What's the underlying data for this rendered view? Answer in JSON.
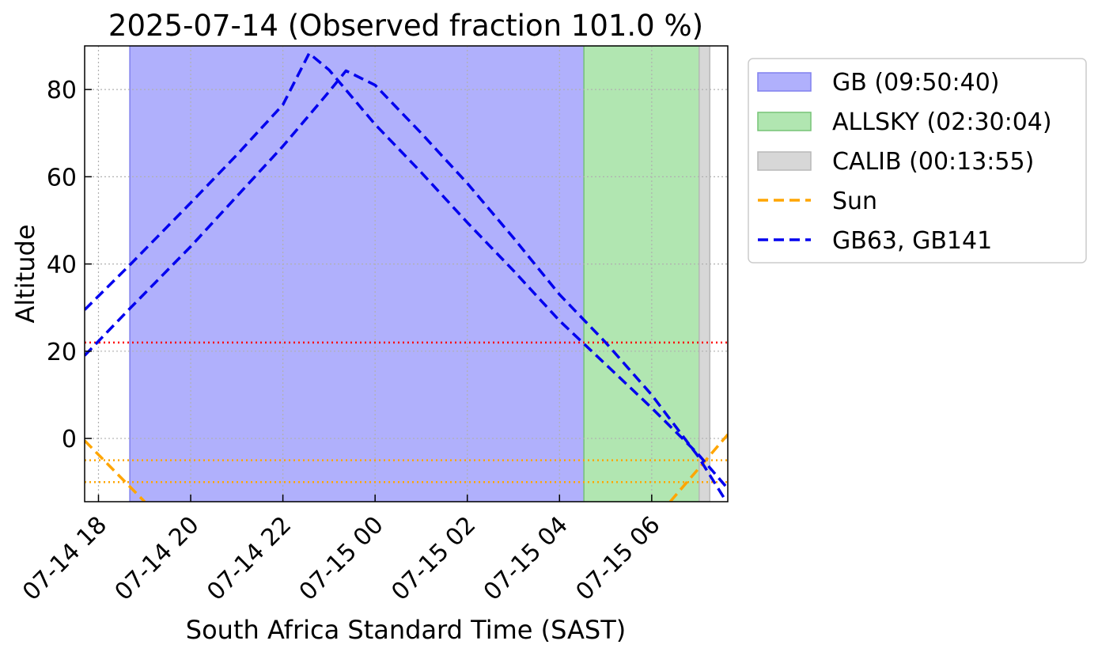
{
  "chart_data": {
    "type": "line",
    "title": "2025-07-14 (Observed fraction 101.0 %)",
    "xlabel": "South Africa Standard Time (SAST)",
    "ylabel": "Altitude",
    "x_unit": "hours since 2025-07-14 00:00 SAST",
    "xlim": [
      17.7,
      31.65
    ],
    "ylim": [
      -14.5,
      90
    ],
    "x_ticks": [
      {
        "value": 18,
        "label": "07-14 18"
      },
      {
        "value": 20,
        "label": "07-14 20"
      },
      {
        "value": 22,
        "label": "07-14 22"
      },
      {
        "value": 24,
        "label": "07-15 00"
      },
      {
        "value": 26,
        "label": "07-15 02"
      },
      {
        "value": 28,
        "label": "07-15 04"
      },
      {
        "value": 30,
        "label": "07-15 06"
      }
    ],
    "y_ticks": [
      {
        "value": 0,
        "label": "0"
      },
      {
        "value": 20,
        "label": "20"
      },
      {
        "value": 40,
        "label": "40"
      },
      {
        "value": 60,
        "label": "60"
      },
      {
        "value": 80,
        "label": "80"
      }
    ],
    "grid": true,
    "legend_position": "outside-right",
    "spans": [
      {
        "name": "GB (09:50:40)",
        "x_start": 18.68,
        "x_end": 28.53,
        "fill": "#b0b0fc",
        "edge": "#8080ee"
      },
      {
        "name": "ALLSKY (02:30:04)",
        "x_start": 28.53,
        "x_end": 31.03,
        "fill": "#b1e6b1",
        "edge": "#77c477"
      },
      {
        "name": "CALIB (00:13:55)",
        "x_start": 31.03,
        "x_end": 31.26,
        "fill": "#d7d7d7",
        "edge": "#b9b9b9"
      }
    ],
    "series": [
      {
        "name": "Sun",
        "color": "#ffa500",
        "dash": true,
        "segments": [
          [
            [
              17.7,
              -0.5
            ],
            [
              19.0,
              -14.5
            ]
          ],
          [
            [
              30.4,
              -14.5
            ],
            [
              31.65,
              0.9
            ]
          ]
        ]
      },
      {
        "name": "GB63, GB141",
        "color": "#0000ee",
        "dash": true,
        "segments": [
          [
            [
              17.7,
              29.5
            ],
            [
              18.7,
              40.0
            ],
            [
              20.0,
              54.0
            ],
            [
              21.0,
              65.0
            ],
            [
              22.0,
              76.5
            ],
            [
              22.57,
              88.3
            ],
            [
              23.0,
              84.5
            ],
            [
              24.0,
              72.0
            ],
            [
              25.0,
              61.0
            ],
            [
              26.0,
              49.5
            ],
            [
              27.0,
              38.5
            ],
            [
              28.0,
              27.0
            ],
            [
              28.5,
              22.0
            ],
            [
              29.0,
              17.0
            ],
            [
              30.0,
              7.0
            ],
            [
              31.0,
              -3.5
            ],
            [
              31.65,
              -11.5
            ]
          ],
          [
            [
              17.7,
              19.0
            ],
            [
              18.7,
              30.0
            ],
            [
              20.0,
              44.0
            ],
            [
              21.0,
              55.5
            ],
            [
              22.0,
              67.0
            ],
            [
              23.0,
              79.5
            ],
            [
              23.37,
              84.3
            ],
            [
              24.0,
              81.0
            ],
            [
              25.0,
              70.0
            ],
            [
              26.0,
              58.5
            ],
            [
              27.0,
              46.0
            ],
            [
              28.0,
              33.0
            ],
            [
              28.5,
              27.5
            ],
            [
              29.0,
              22.0
            ],
            [
              30.0,
              10.0
            ],
            [
              31.0,
              -4.0
            ],
            [
              31.65,
              -15.0
            ]
          ]
        ]
      }
    ],
    "reference_lines": [
      {
        "y": 22,
        "color": "#ff0000",
        "style": "dotted"
      },
      {
        "y": -5,
        "color": "#ffa500",
        "style": "dotted"
      },
      {
        "y": -10,
        "color": "#ffa500",
        "style": "dotted"
      }
    ]
  }
}
